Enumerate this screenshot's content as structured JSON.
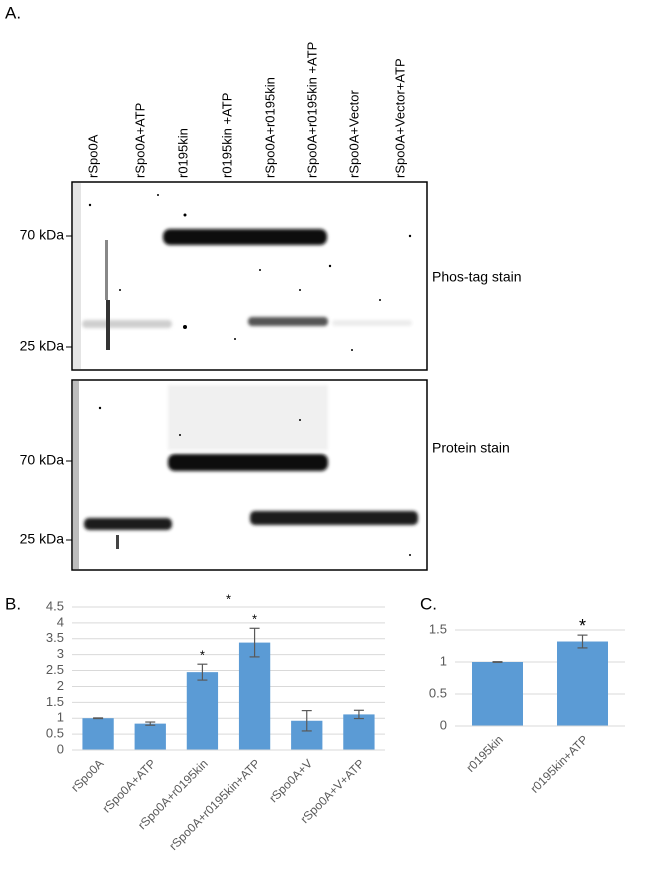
{
  "panel_a": {
    "label": "A.",
    "lanes": [
      "rSpo0A",
      "rSpo0A+ATP",
      "r0195kin",
      "r0195kin +ATP",
      "rSpo0A+r0195kin",
      "rSpo0A+r0195kin +ATP",
      "rSpo0A+Vector",
      "rSpo0A+Vector+ATP"
    ],
    "blots": [
      {
        "stain": "Phos-tag stain",
        "markers": [
          "70 kDa",
          "25 kDa"
        ]
      },
      {
        "stain": "Protein stain",
        "markers": [
          "70 kDa",
          "25 kDa"
        ]
      }
    ]
  },
  "chart_data": [
    {
      "type": "bar",
      "panel": "B.",
      "categories": [
        "rSpo0A",
        "rSpo0A+ATP",
        "rSpo0A+r0195kin",
        "rSpo0A+r0195kin+ATP",
        "rSpo0A+V",
        "rSpo0A+V+ATP"
      ],
      "values": [
        1.0,
        0.83,
        2.45,
        3.38,
        0.92,
        1.12
      ],
      "errors": [
        0.01,
        0.05,
        0.25,
        0.45,
        0.32,
        0.13
      ],
      "color": "#5b9bd5",
      "ylim": [
        0,
        4.5
      ],
      "yticks": [
        0,
        0.5,
        1,
        1.5,
        2,
        2.5,
        3,
        3.5,
        4,
        4.5
      ],
      "grid": true,
      "annotations": [
        "*",
        "*",
        "*"
      ]
    },
    {
      "type": "bar",
      "panel": "C.",
      "categories": [
        "r0195kin",
        "r0195kin+ATP"
      ],
      "values": [
        1.0,
        1.32
      ],
      "errors": [
        0.005,
        0.1
      ],
      "color": "#5b9bd5",
      "ylim": [
        0,
        1.5
      ],
      "yticks": [
        0,
        0.5,
        1,
        1.5
      ],
      "grid": true,
      "annotations": [
        "*"
      ]
    }
  ]
}
